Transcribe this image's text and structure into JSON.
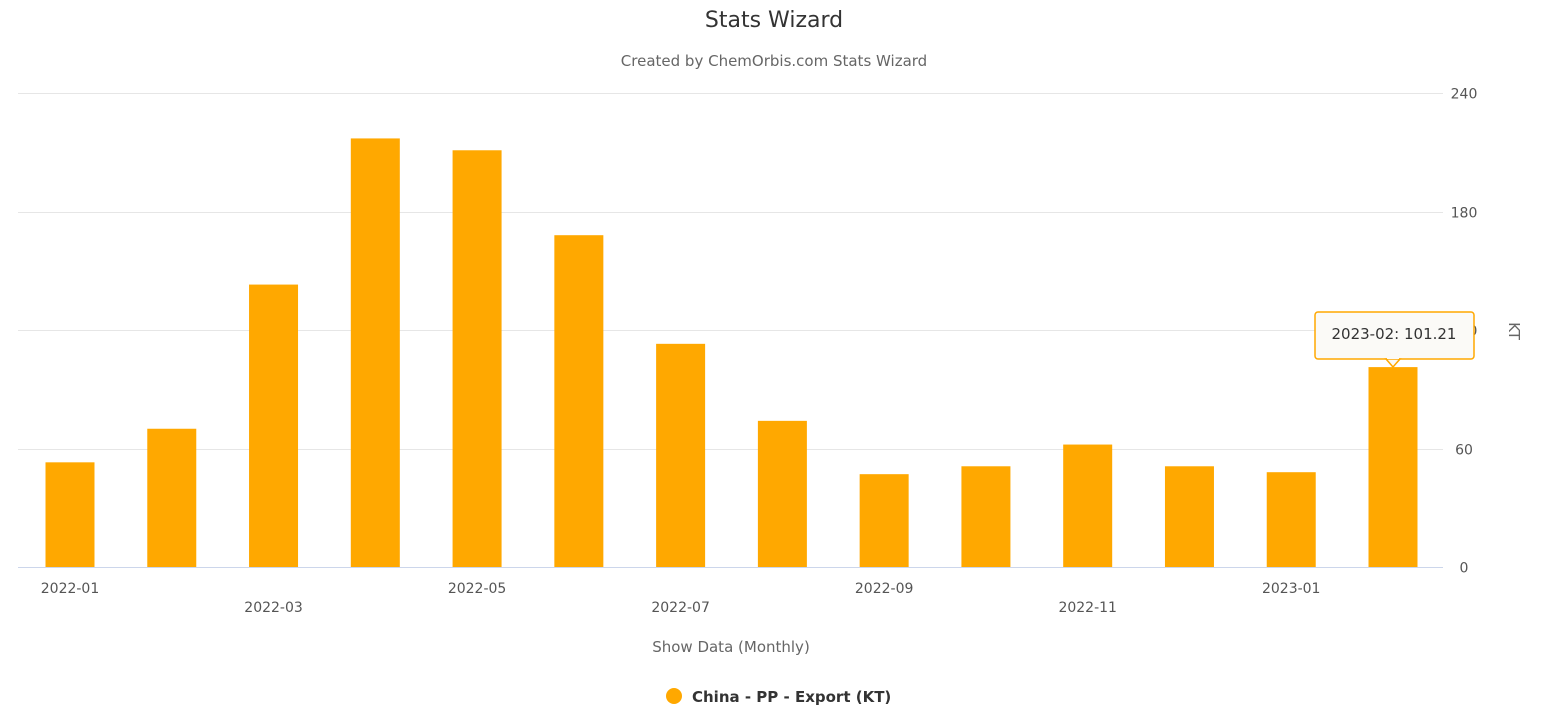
{
  "chart_data": {
    "type": "bar",
    "title": "Stats Wizard",
    "subtitle": "Created by ChemOrbis.com Stats Wizard",
    "xlabel": "Show Data (Monthly)",
    "ylabel": "KT",
    "ylim": [
      0,
      240
    ],
    "yticks": [
      "0",
      "60",
      "120",
      "180",
      "240"
    ],
    "grid": true,
    "legend_position": "bottom-center",
    "categories": [
      "2022-01",
      "2022-02",
      "2022-03",
      "2022-04",
      "2022-05",
      "2022-06",
      "2022-07",
      "2022-08",
      "2022-09",
      "2022-10",
      "2022-11",
      "2022-12",
      "2023-01",
      "2023-02"
    ],
    "x_tick_labels": [
      "2022-01",
      "2022-03",
      "2022-05",
      "2022-07",
      "2022-09",
      "2022-11",
      "2023-01"
    ],
    "series": [
      {
        "name": "China - PP - Export (KT)",
        "color": "#FFA800",
        "values": [
          53,
          70,
          143,
          217,
          211,
          168,
          113,
          74,
          47,
          51,
          62,
          51,
          48,
          101.21
        ]
      }
    ],
    "tooltip": {
      "text": "2023-02: 101.21",
      "category": "2023-02"
    }
  }
}
